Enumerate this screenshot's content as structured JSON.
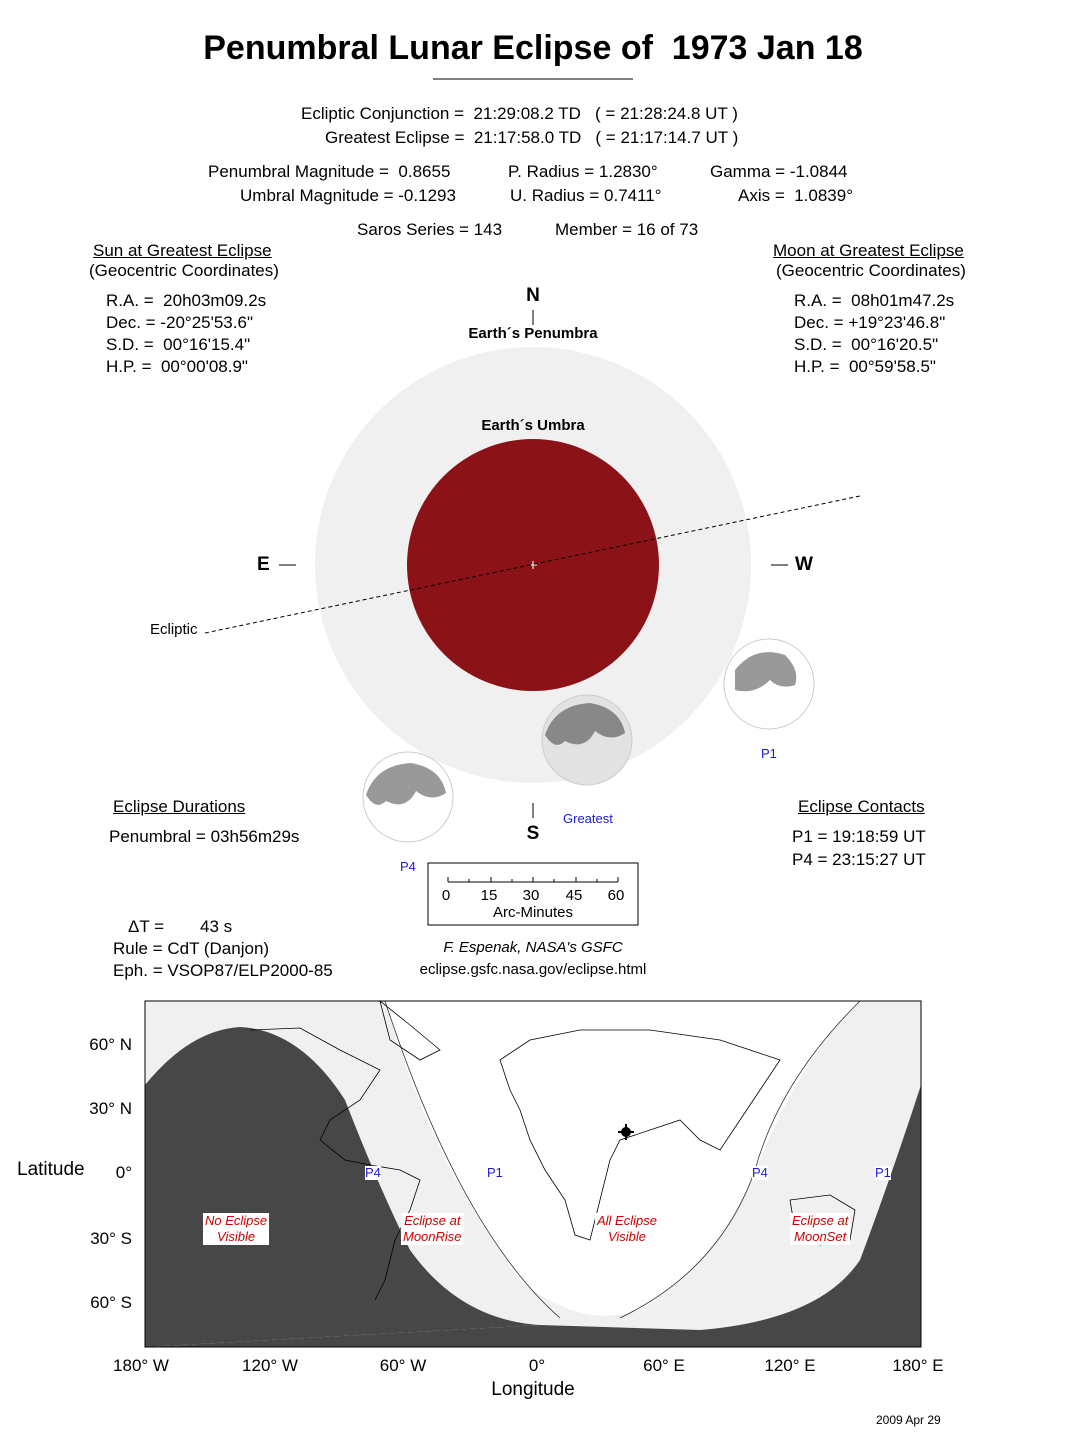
{
  "title": "Penumbral Lunar Eclipse of  1973 Jan 18",
  "times": {
    "conjunction": "Ecliptic Conjunction =  21:29:08.2 TD   ( = 21:28:24.8 UT )",
    "greatest": "Greatest Eclipse =  21:17:58.0 TD   ( = 21:17:14.7 UT )"
  },
  "params": {
    "pen_mag": "Penumbral Magnitude =  0.8655",
    "umb_mag": "Umbral Magnitude = -0.1293",
    "p_radius": "P. Radius = 1.2830°",
    "u_radius": "U. Radius = 0.7411°",
    "gamma": "Gamma = -1.0844",
    "axis": "Axis =  1.0839°",
    "saros": "Saros Series = 143",
    "member": "Member = 16 of 73"
  },
  "sun": {
    "heading": "Sun at Greatest Eclipse",
    "sub": "(Geocentric Coordinates)",
    "lines": [
      "R.A. =  20h03m09.2s",
      "Dec. = -20°25'53.6\"",
      "S.D. =  00°16'15.4\"",
      "H.P. =  00°00'08.9\""
    ]
  },
  "moon": {
    "heading": "Moon at Greatest Eclipse",
    "sub": "(Geocentric Coordinates)",
    "lines": [
      "R.A. =  08h01m47.2s",
      "Dec. = +19°23'46.8\"",
      "S.D. =  00°16'20.5\"",
      "H.P. =  00°59'58.5\""
    ]
  },
  "diagram": {
    "north": "N",
    "south": "S",
    "east": "E",
    "west": "W",
    "penumbra_label": "Earth´s Penumbra",
    "umbra_label": "Earth´s Umbra",
    "ecliptic_label": "Ecliptic",
    "p1": "P1",
    "p4": "P4",
    "greatest": "Greatest",
    "umbra_color": "#8b1216",
    "penumbra_color": "#f0f0f0"
  },
  "durations": {
    "heading": "Eclipse Durations",
    "penumbral": "Penumbral = 03h56m29s"
  },
  "contacts": {
    "heading": "Eclipse Contacts",
    "p1": "P1 = 19:18:59 UT",
    "p4": "P4 = 23:15:27 UT"
  },
  "scale": {
    "ticks": [
      "0",
      "15",
      "30",
      "45",
      "60"
    ],
    "label": "Arc-Minutes"
  },
  "misc": {
    "delta_t_label": "ΔT =",
    "delta_t": "43 s",
    "rule": "Rule = CdT (Danjon)",
    "eph": "Eph. = VSOP87/ELP2000-85",
    "credit": "F. Espenak, NASA's GSFC",
    "url": "eclipse.gsfc.nasa.gov/eclipse.html",
    "date": "2009 Apr 29"
  },
  "map": {
    "lat_ticks": [
      "60° N",
      "30° N",
      "0°",
      "30° S",
      "60° S"
    ],
    "lon_ticks": [
      "180° W",
      "120° W",
      "60° W",
      "0°",
      "60° E",
      "120° E",
      "180° E"
    ],
    "ylabel": "Latitude",
    "xlabel": "Longitude",
    "zones": {
      "none": [
        "No Eclipse",
        "Visible"
      ],
      "rise": [
        "Eclipse at",
        "MoonRise"
      ],
      "all": [
        "All Eclipse",
        "Visible"
      ],
      "set": [
        "Eclipse at",
        "MoonSet"
      ]
    },
    "contact_labels": [
      "P4",
      "P1",
      "P4",
      "P1"
    ]
  }
}
